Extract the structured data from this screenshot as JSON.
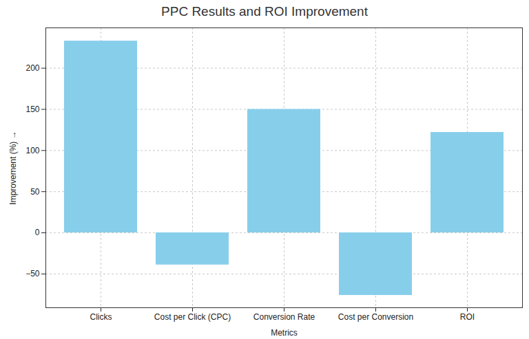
{
  "chart_data": {
    "type": "bar",
    "title": "PPC Results and ROI Improvement",
    "x_label": "Metrics",
    "y_label": "Improvement (%)",
    "categories": [
      "Clicks",
      "Cost per Click (CPC)",
      "Conversion Rate",
      "Cost per Conversion",
      "ROI"
    ],
    "values": [
      233,
      -39,
      150,
      -76,
      122
    ],
    "color": "#87ceeb",
    "ylim": [
      -91,
      249
    ],
    "yticks": [
      -50,
      0,
      50,
      100,
      150,
      200
    ],
    "grid": true
  }
}
